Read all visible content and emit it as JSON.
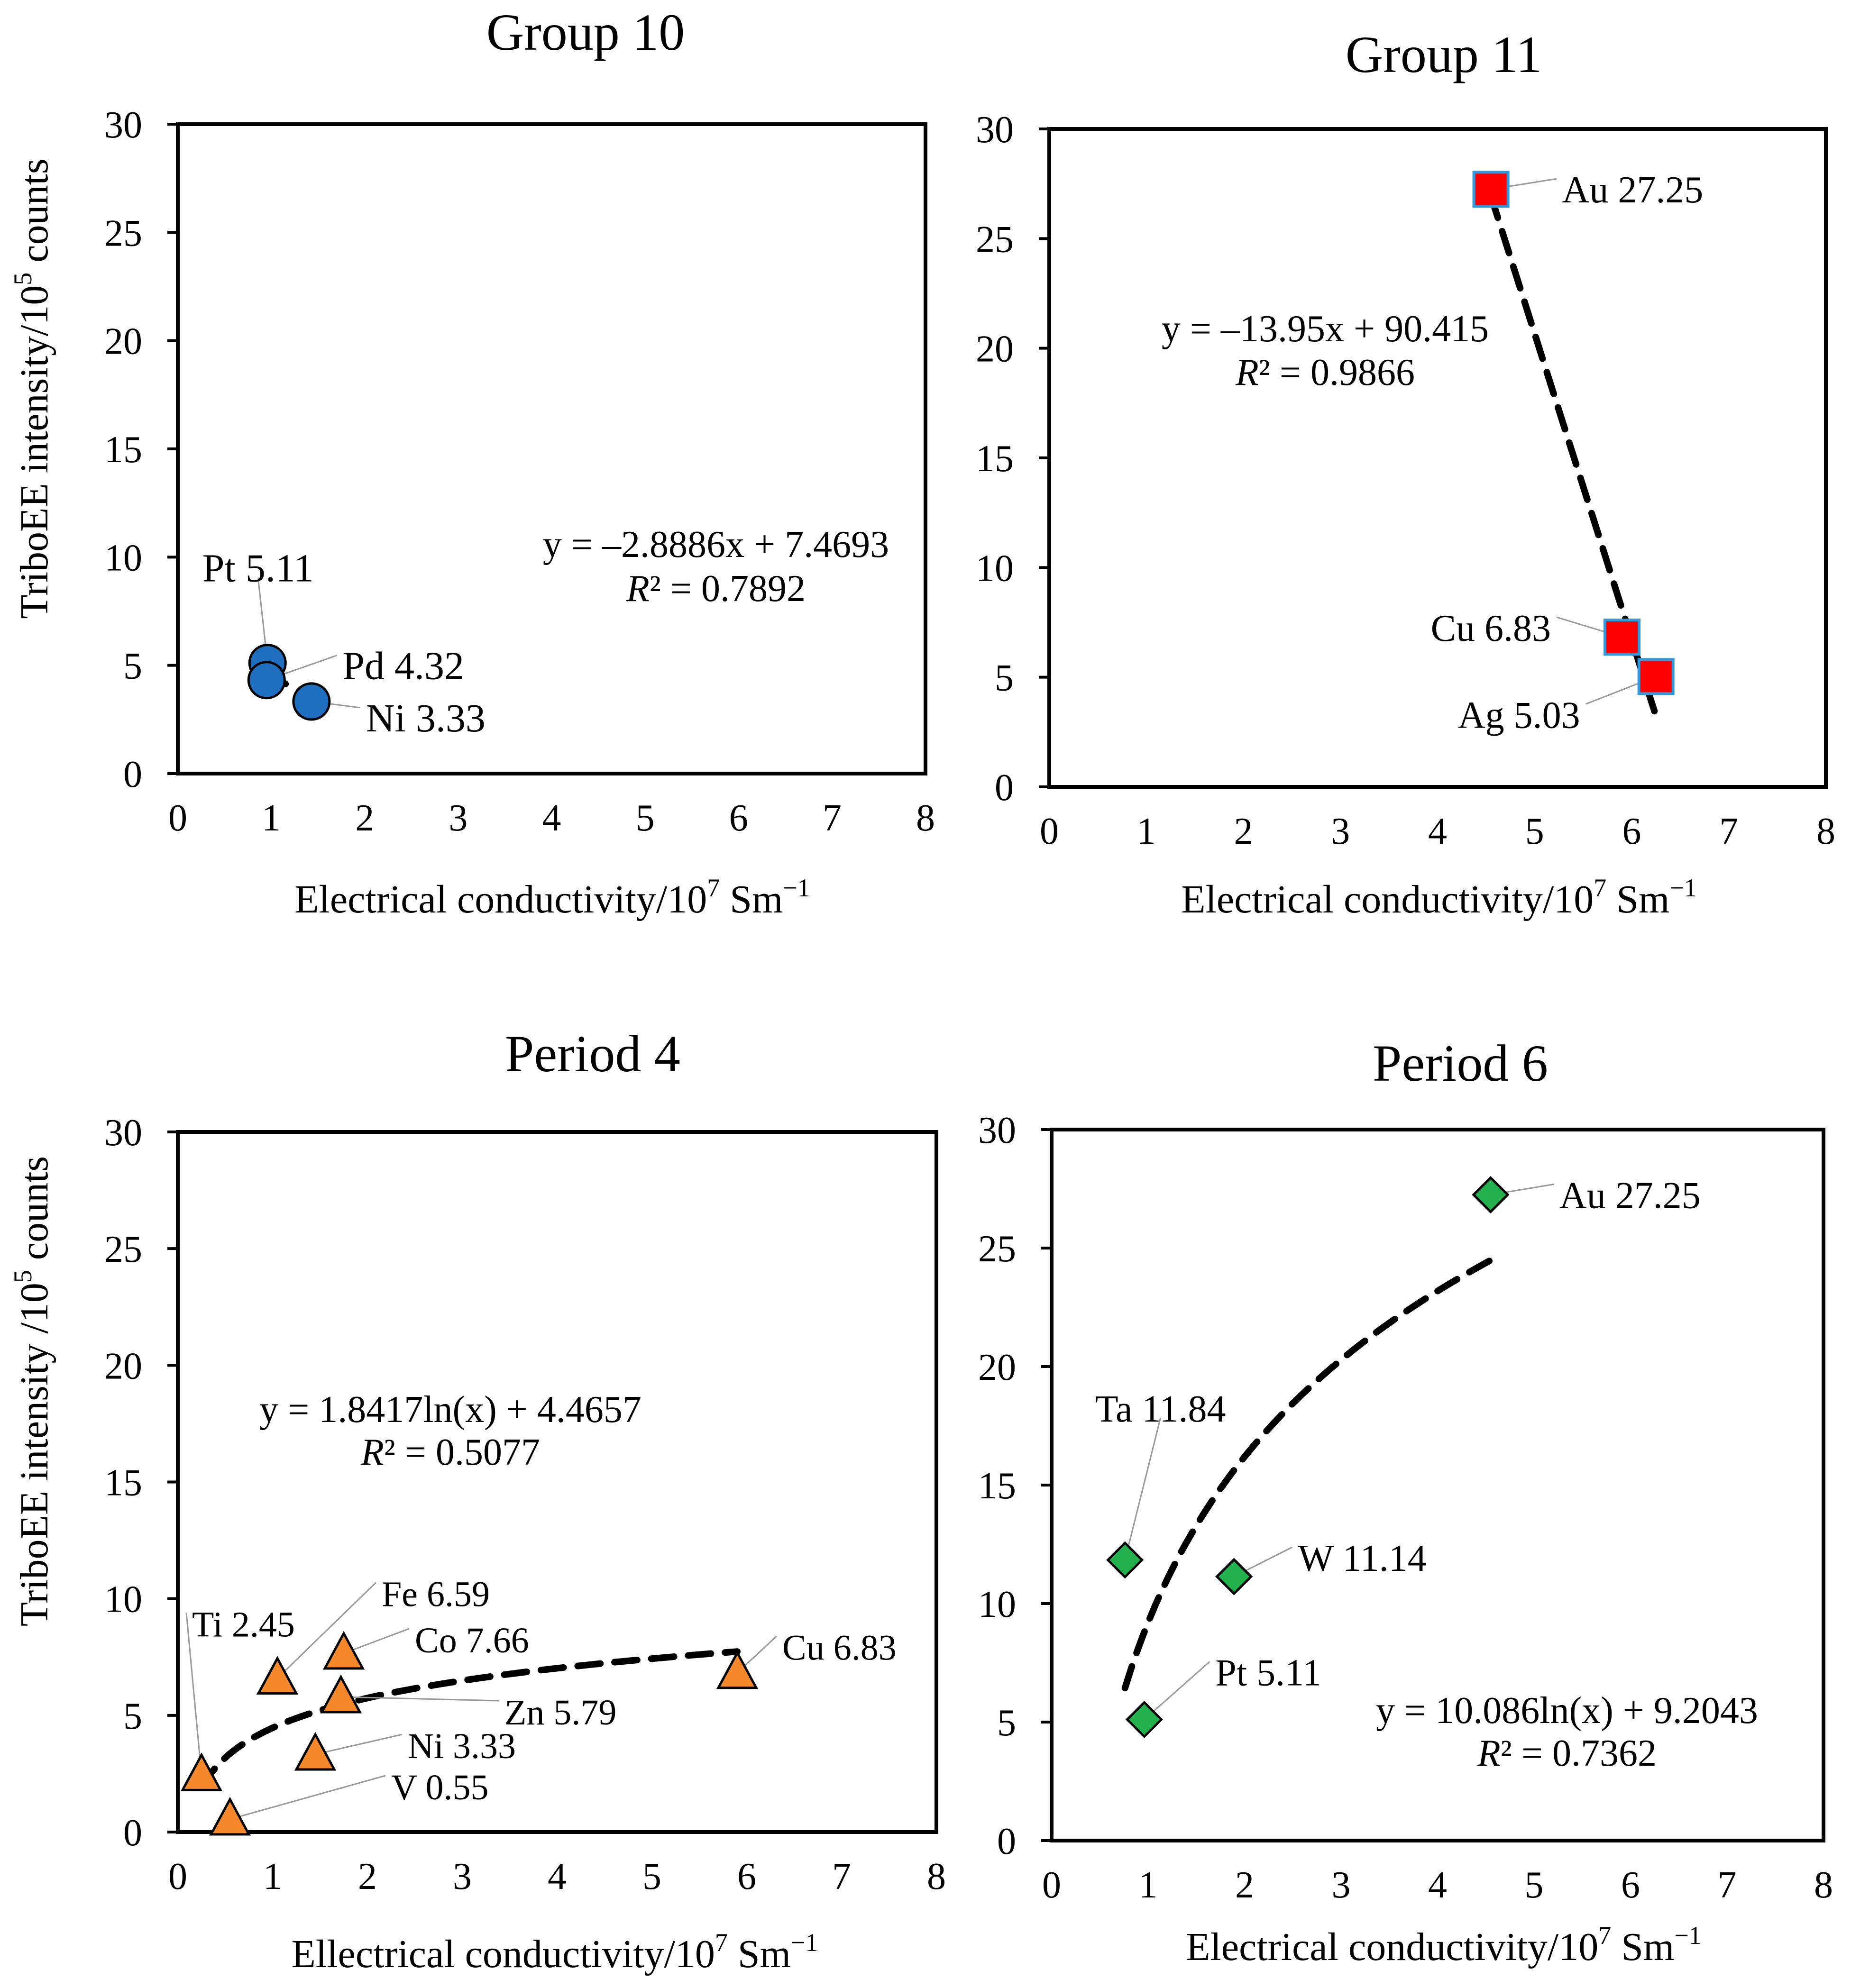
{
  "chart_data": [
    {
      "type": "scatter",
      "title": "Group 10",
      "xlabel": "Electrical conductivity/10",
      "xlabel_exp": "7",
      "xlabel_unit": " Sm",
      "xlabel_unit_exp": "−1",
      "ylabel": "TriboEE intensity/10",
      "ylabel_exp": "5",
      "ylabel_unit": " counts",
      "xlim": [
        0,
        8
      ],
      "ylim": [
        0,
        30
      ],
      "xticks": [
        "0",
        "1",
        "2",
        "3",
        "4",
        "5",
        "6",
        "7",
        "8"
      ],
      "yticks": [
        "0",
        "5",
        "10",
        "15",
        "20",
        "25",
        "30"
      ],
      "marker": "circle",
      "marker_color": "#1f6fc1",
      "points": [
        {
          "label": "Pt 5.11",
          "x": 0.96,
          "y": 5.11
        },
        {
          "label": "Pd 4.32",
          "x": 0.95,
          "y": 4.32
        },
        {
          "label": "Ni 3.33",
          "x": 1.43,
          "y": 3.33
        }
      ],
      "trend": {
        "type": "linear",
        "slope": -2.8886,
        "intercept": 7.4693,
        "x_range": [
          0.95,
          1.25
        ]
      },
      "equation": "y = –2.8886x + 7.4693",
      "r2_label": "R",
      "r2_value": "² = 0.7892"
    },
    {
      "type": "scatter",
      "title": "Group 11",
      "xlabel": "Electrical conductivity/10",
      "xlabel_exp": "7",
      "xlabel_unit": " Sm",
      "xlabel_unit_exp": "−1",
      "xlim": [
        0,
        8
      ],
      "ylim": [
        0,
        30
      ],
      "xticks": [
        "0",
        "1",
        "2",
        "3",
        "4",
        "5",
        "6",
        "7",
        "8"
      ],
      "yticks": [
        "0",
        "5",
        "10",
        "15",
        "20",
        "25",
        "30"
      ],
      "marker": "square",
      "marker_color": "#ff0000",
      "points": [
        {
          "label": "Au 27.25",
          "x": 4.55,
          "y": 27.25
        },
        {
          "label": "Cu 6.83",
          "x": 5.9,
          "y": 6.83
        },
        {
          "label": "Ag 5.03",
          "x": 6.25,
          "y": 5.03
        }
      ],
      "trend": {
        "type": "linear",
        "slope": -13.95,
        "intercept": 90.415,
        "x_range": [
          4.55,
          6.25
        ]
      },
      "equation": "y = –13.95x + 90.415",
      "r2_label": "R",
      "r2_value": "² = 0.9866"
    },
    {
      "type": "scatter",
      "title": "Period 4",
      "xlabel": "Ellectrical conductivity/10",
      "xlabel_exp": "7",
      "xlabel_unit": " Sm",
      "xlabel_unit_exp": "−1",
      "ylabel": "TriboEE intensity /10",
      "ylabel_exp": "5",
      "ylabel_unit": " counts",
      "xlim": [
        0,
        8
      ],
      "ylim": [
        0,
        30
      ],
      "xticks": [
        "0",
        "1",
        "2",
        "3",
        "4",
        "5",
        "6",
        "7",
        "8"
      ],
      "yticks": [
        "0",
        "5",
        "10",
        "15",
        "20",
        "25",
        "30"
      ],
      "marker": "triangle",
      "marker_color": "#f5882a",
      "points": [
        {
          "label": "Ti 2.45",
          "x": 0.25,
          "y": 2.45
        },
        {
          "label": "V 0.55",
          "x": 0.55,
          "y": 0.55
        },
        {
          "label": "Fe 6.59",
          "x": 1.05,
          "y": 6.59
        },
        {
          "label": "Co 7.66",
          "x": 1.75,
          "y": 7.66
        },
        {
          "label": "Zn 5.79",
          "x": 1.72,
          "y": 5.79
        },
        {
          "label": "Ni 3.33",
          "x": 1.45,
          "y": 3.33
        },
        {
          "label": "Cu 6.83",
          "x": 5.9,
          "y": 6.83
        }
      ],
      "trend": {
        "type": "log",
        "a": 1.8417,
        "b": 4.4657,
        "x_range": [
          0.25,
          5.9
        ]
      },
      "equation": "y = 1.8417ln(x) + 4.4657",
      "r2_label": "R",
      "r2_value": "² = 0.5077"
    },
    {
      "type": "scatter",
      "title": "Period 6",
      "xlabel": "Electrical conductivity/10",
      "xlabel_exp": "7",
      "xlabel_unit": " Sm",
      "xlabel_unit_exp": "−1",
      "xlim": [
        0,
        8
      ],
      "ylim": [
        0,
        30
      ],
      "xticks": [
        "0",
        "1",
        "2",
        "3",
        "4",
        "5",
        "6",
        "7",
        "8"
      ],
      "yticks": [
        "0",
        "5",
        "10",
        "15",
        "20",
        "25",
        "30"
      ],
      "marker": "diamond",
      "marker_color": "#22b14c",
      "points": [
        {
          "label": "Au 27.25",
          "x": 4.55,
          "y": 27.25
        },
        {
          "label": "Ta 11.84",
          "x": 0.76,
          "y": 11.84
        },
        {
          "label": "W 11.14",
          "x": 1.89,
          "y": 11.14
        },
        {
          "label": "Pt 5.11",
          "x": 0.96,
          "y": 5.11
        }
      ],
      "trend": {
        "type": "log",
        "a": 10.086,
        "b": 9.2043,
        "x_range": [
          0.76,
          4.55
        ]
      },
      "equation": "y = 10.086ln(x) + 9.2043",
      "r2_label": "R",
      "r2_value": "² = 0.7362"
    }
  ]
}
